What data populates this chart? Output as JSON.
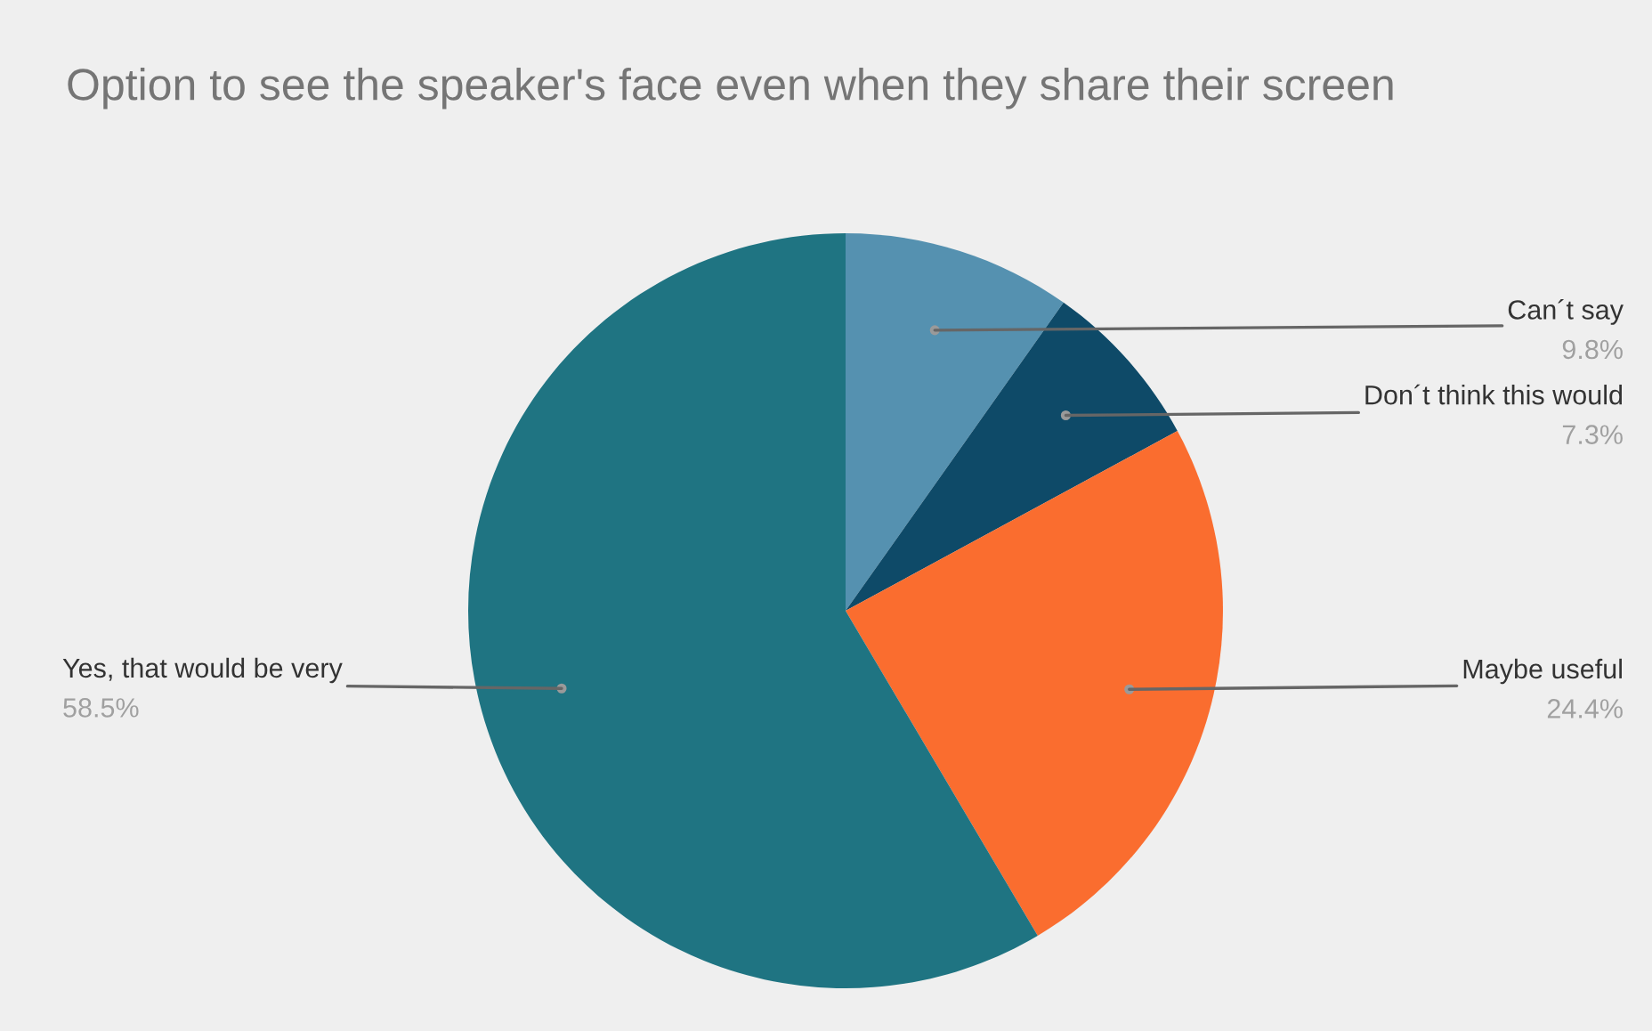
{
  "chart_data": {
    "type": "pie",
    "title": "Option to see the speaker's face even when they share their screen",
    "categories": [
      "Can´t say",
      "Don´t think this would",
      "Maybe useful",
      "Yes, that would be very"
    ],
    "values": [
      9.8,
      7.3,
      24.4,
      58.5
    ],
    "colors": [
      "#5591b0",
      "#0e4a68",
      "#fa6d2f",
      "#1f7482"
    ],
    "value_labels": [
      "9.8%",
      "7.3%",
      "24.4%",
      "58.5%"
    ],
    "legend": false
  }
}
